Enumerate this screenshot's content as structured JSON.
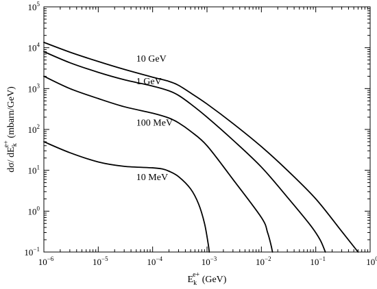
{
  "chart_data": {
    "type": "line",
    "title": "",
    "xlabel": {
      "base": "E",
      "sub": "k",
      "sup": "e+",
      "unit": " (GeV)"
    },
    "ylabel": {
      "prefix": "dσ/ dE",
      "sub": "k",
      "sup": "e+",
      "unit": "  (mbarn/GeV)"
    },
    "xscale": "log",
    "yscale": "log",
    "xlim": [
      1e-06,
      1
    ],
    "ylim": [
      0.1,
      100000
    ],
    "x_ticks": [
      {
        "value": 1e-06,
        "base": "10",
        "exp": "−6"
      },
      {
        "value": 1e-05,
        "base": "10",
        "exp": "−5"
      },
      {
        "value": 0.0001,
        "base": "10",
        "exp": "−4"
      },
      {
        "value": 0.001,
        "base": "10",
        "exp": "−3"
      },
      {
        "value": 0.01,
        "base": "10",
        "exp": "−2"
      },
      {
        "value": 0.1,
        "base": "10",
        "exp": "−1"
      },
      {
        "value": 1,
        "base": "10",
        "exp": "0"
      }
    ],
    "y_ticks": [
      {
        "value": 0.1,
        "base": "10",
        "exp": "−1"
      },
      {
        "value": 1,
        "base": "10",
        "exp": "0"
      },
      {
        "value": 10,
        "base": "10",
        "exp": "1"
      },
      {
        "value": 100,
        "base": "10",
        "exp": "2"
      },
      {
        "value": 1000,
        "base": "10",
        "exp": "3"
      },
      {
        "value": 10000,
        "base": "10",
        "exp": "4"
      },
      {
        "value": 100000,
        "base": "10",
        "exp": "5"
      }
    ],
    "grid": false,
    "legend": "none",
    "series": [
      {
        "name": "10 GeV",
        "label_at": [
          5e-05,
          5500
        ],
        "x": [
          1e-06,
          3e-06,
          1e-05,
          3e-05,
          0.0001,
          0.0002,
          0.0003,
          0.0005,
          0.001,
          0.003,
          0.01,
          0.03,
          0.1,
          0.3,
          0.6
        ],
        "y": [
          13500,
          7800,
          4600,
          2950,
          1900,
          1500,
          1200,
          780,
          420,
          140,
          38,
          10,
          2,
          0.32,
          0.1
        ]
      },
      {
        "name": "1 GeV",
        "label_at": [
          5e-05,
          1550
        ],
        "x": [
          1e-06,
          3e-06,
          1e-05,
          3e-05,
          0.0001,
          0.0002,
          0.0003,
          0.0005,
          0.001,
          0.003,
          0.01,
          0.03,
          0.08,
          0.12,
          0.15
        ],
        "y": [
          8000,
          4300,
          2500,
          1650,
          1150,
          880,
          680,
          420,
          200,
          55,
          12,
          2.2,
          0.45,
          0.2,
          0.1
        ]
      },
      {
        "name": "100 MeV",
        "label_at": [
          5e-05,
          150
        ],
        "x": [
          1e-06,
          3e-06,
          1e-05,
          3e-05,
          0.0001,
          0.0002,
          0.0003,
          0.0005,
          0.001,
          0.003,
          0.01,
          0.013,
          0.015,
          0.016
        ],
        "y": [
          2000,
          1000,
          570,
          360,
          250,
          190,
          145,
          90,
          40,
          6,
          0.7,
          0.3,
          0.15,
          0.1
        ]
      },
      {
        "name": "10 MeV",
        "label_at": [
          5e-05,
          7
        ],
        "x": [
          1e-06,
          3e-06,
          1e-05,
          3e-05,
          0.0001,
          0.00015,
          0.0002,
          0.0003,
          0.0005,
          0.0007,
          0.0009,
          0.00105,
          0.0011
        ],
        "y": [
          50,
          27,
          16,
          12.5,
          11.5,
          10.8,
          9.5,
          7,
          3.5,
          1.5,
          0.5,
          0.16,
          0.1
        ]
      }
    ]
  }
}
